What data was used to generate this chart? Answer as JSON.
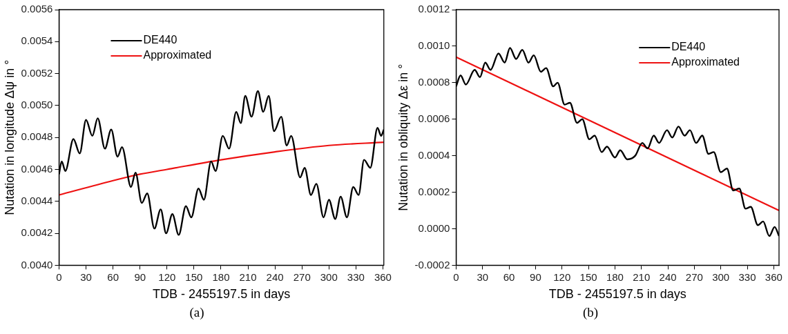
{
  "chart_data": [
    {
      "type": "line",
      "xlabel": "TDB - 2455197.5 in days",
      "ylabel": "Nutation in longitude Δψ in °",
      "legend": "top left",
      "annotations": [
        "(a)"
      ],
      "xlim": [
        0,
        361
      ],
      "xticks": [
        0,
        30,
        60,
        90,
        120,
        150,
        180,
        210,
        240,
        270,
        300,
        330,
        360
      ],
      "ylim": [
        0.004,
        0.0056
      ],
      "yticks": [
        {
          "value": 0.004,
          "label": "0.0040"
        },
        {
          "value": 0.0042,
          "label": "0.0042"
        },
        {
          "value": 0.0044,
          "label": "0.0044"
        },
        {
          "value": 0.0046,
          "label": "0.0046"
        },
        {
          "value": 0.0048,
          "label": "0.0048"
        },
        {
          "value": 0.005,
          "label": "0.0050"
        },
        {
          "value": 0.0052,
          "label": "0.0052"
        },
        {
          "value": 0.0054,
          "label": "0.0054"
        },
        {
          "value": 0.0056,
          "label": "0.0056"
        }
      ],
      "series": [
        {
          "name": "DE440",
          "color": "#000000",
          "x": [
            0,
            3,
            7,
            16,
            23,
            30,
            37,
            43,
            51,
            58,
            65,
            70,
            80,
            85,
            92,
            98,
            106,
            113,
            119,
            126,
            133,
            141,
            147,
            155,
            161,
            169,
            174,
            182,
            189,
            197,
            202,
            207,
            214,
            221,
            227,
            233,
            239,
            247,
            253,
            258,
            268,
            273,
            280,
            286,
            294,
            300,
            307,
            313,
            320,
            327,
            333,
            339,
            346,
            354,
            358,
            361
          ],
          "values": [
            0.00457,
            0.00465,
            0.00459,
            0.00479,
            0.0047,
            0.00491,
            0.00481,
            0.00492,
            0.00473,
            0.00485,
            0.00468,
            0.00474,
            0.00449,
            0.00458,
            0.00439,
            0.00445,
            0.00423,
            0.00435,
            0.0042,
            0.00432,
            0.00419,
            0.00437,
            0.0043,
            0.00448,
            0.00441,
            0.00465,
            0.00459,
            0.00481,
            0.00473,
            0.00496,
            0.00489,
            0.00506,
            0.00493,
            0.00509,
            0.00496,
            0.00506,
            0.00484,
            0.00493,
            0.00475,
            0.00481,
            0.00455,
            0.00461,
            0.00444,
            0.00451,
            0.0043,
            0.00441,
            0.00429,
            0.00443,
            0.0043,
            0.00449,
            0.00444,
            0.00466,
            0.00461,
            0.00486,
            0.00481,
            0.00485
          ]
        },
        {
          "name": "Approximated",
          "color": "#ee1111",
          "x": [
            0,
            60,
            90,
            120,
            180,
            240,
            300,
            361
          ],
          "values": [
            0.00444,
            0.00453,
            0.00457,
            0.0046,
            0.00466,
            0.00471,
            0.00475,
            0.00477
          ]
        }
      ]
    },
    {
      "type": "line",
      "xlabel": "TDB - 2455197.5 in days",
      "ylabel": "Nutation in obliquity Δε in °",
      "legend": "top right",
      "annotations": [
        "(b)"
      ],
      "xlim": [
        0,
        366
      ],
      "xticks": [
        0,
        30,
        60,
        90,
        120,
        150,
        180,
        210,
        240,
        270,
        300,
        330,
        360
      ],
      "ylim": [
        -0.0002,
        0.0012
      ],
      "yticks": [
        {
          "value": -0.0002,
          "label": "-0.0002"
        },
        {
          "value": 0,
          "label": "0.0000"
        },
        {
          "value": 0.0002,
          "label": "0.0002"
        },
        {
          "value": 0.0004,
          "label": "0.0004"
        },
        {
          "value": 0.0006,
          "label": "0.0006"
        },
        {
          "value": 0.0008,
          "label": "0.0008"
        },
        {
          "value": 0.001,
          "label": "0.0010"
        },
        {
          "value": 0.0012,
          "label": "0.0012"
        }
      ],
      "series": [
        {
          "name": "DE440",
          "color": "#000000",
          "x": [
            0,
            5,
            11,
            21,
            27,
            33,
            39,
            48,
            55,
            61,
            68,
            75,
            82,
            88,
            96,
            102,
            110,
            115,
            123,
            129,
            137,
            143,
            151,
            157,
            165,
            171,
            180,
            186,
            194,
            203,
            211,
            217,
            224,
            230,
            239,
            245,
            252,
            259,
            265,
            272,
            279,
            286,
            292,
            300,
            307,
            314,
            321,
            328,
            334,
            342,
            348,
            355,
            361,
            366
          ],
          "values": [
            0.00078,
            0.00084,
            0.00079,
            0.00087,
            0.00083,
            0.00091,
            0.00087,
            0.00096,
            0.00091,
            0.00099,
            0.00093,
            0.00098,
            0.00091,
            0.00095,
            0.00086,
            0.00088,
            0.00078,
            0.0008,
            0.00068,
            0.00069,
            0.00058,
            0.0006,
            0.00049,
            0.00051,
            0.00042,
            0.00045,
            0.00039,
            0.00043,
            0.00038,
            0.0004,
            0.00047,
            0.00044,
            0.00051,
            0.00047,
            0.00054,
            0.0005,
            0.00056,
            0.00051,
            0.00054,
            0.00047,
            0.00051,
            0.00041,
            0.00042,
            0.00031,
            0.00033,
            0.00021,
            0.00022,
            0.00011,
            0.00012,
            2e-05,
            4e-05,
            -4e-05,
            1e-05,
            -4e-05
          ]
        },
        {
          "name": "Approximated",
          "color": "#ee1111",
          "x": [
            0,
            366
          ],
          "values": [
            0.00094,
            0.0001
          ]
        }
      ]
    }
  ]
}
